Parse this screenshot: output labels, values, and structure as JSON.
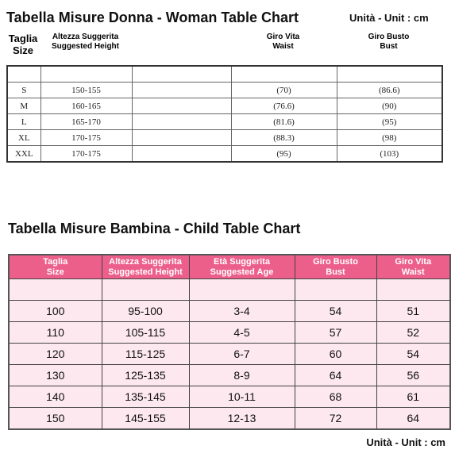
{
  "woman": {
    "title": "Tabella Misure Donna - Woman Table Chart",
    "unit": "Unità - Unit : cm",
    "headers": [
      {
        "it": "Taglia",
        "en": "Size"
      },
      {
        "it": "Altezza Suggerita",
        "en": "Suggested Height"
      },
      {
        "it": "Giro Vita",
        "en": "Waist"
      },
      {
        "it": "Giro Busto",
        "en": "Bust"
      }
    ],
    "rows": [
      [
        "S",
        "150-155",
        "(70)",
        "(86.6)"
      ],
      [
        "M",
        "160-165",
        "(76.6)",
        "(90)"
      ],
      [
        "L",
        "165-170",
        "(81.6)",
        "(95)"
      ],
      [
        "XL",
        "170-175",
        "(88.3)",
        "(98)"
      ],
      [
        "XXL",
        "170-175",
        "(95)",
        "(103)"
      ]
    ]
  },
  "child": {
    "title": "Tabella Misure Bambina - Child Table Chart",
    "unit": "Unità - Unit : cm",
    "headers": [
      {
        "it": "Taglia",
        "en": "Size"
      },
      {
        "it": "Altezza Suggerita",
        "en": "Suggested Height"
      },
      {
        "it": "Età Suggerita",
        "en": "Suggested Age"
      },
      {
        "it": "Giro Busto",
        "en": "Bust"
      },
      {
        "it": "Giro Vita",
        "en": "Waist"
      }
    ],
    "rows": [
      [
        "100",
        "95-100",
        "3-4",
        "54",
        "51"
      ],
      [
        "110",
        "105-115",
        "4-5",
        "57",
        "52"
      ],
      [
        "120",
        "115-125",
        "6-7",
        "60",
        "54"
      ],
      [
        "130",
        "125-135",
        "8-9",
        "64",
        "56"
      ],
      [
        "140",
        "135-145",
        "10-11",
        "68",
        "61"
      ],
      [
        "150",
        "145-155",
        "12-13",
        "72",
        "64"
      ]
    ]
  }
}
